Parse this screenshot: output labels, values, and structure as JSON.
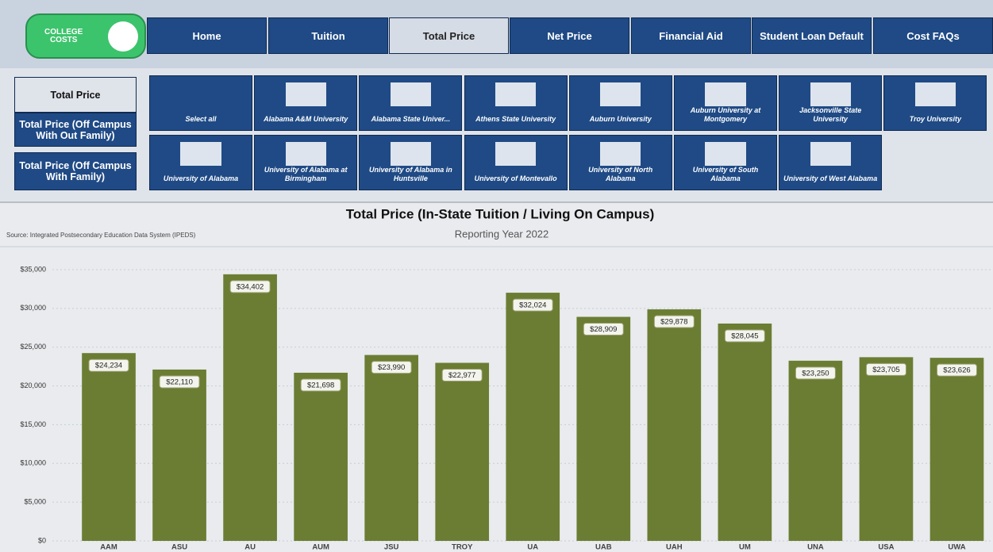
{
  "logo": {
    "line1": "COLLEGE",
    "line2": "COSTS"
  },
  "nav": [
    "Home",
    "Tuition",
    "Total Price",
    "Net Price",
    "Financial Aid",
    "Student Loan Default",
    "Cost FAQs"
  ],
  "nav_selected": "Total Price",
  "side_buttons": [
    "Total Price",
    "Total Price (Off Campus With Out Family)",
    "Total Price (Off Campus With Family)"
  ],
  "side_selected": "Total Price",
  "tiles": [
    [
      "Select all",
      "Alabama A&M University",
      "Alabama State Univer...",
      "Athens State University",
      "Auburn University",
      "Auburn University at Montgomery",
      "Jacksonville State University",
      "Troy University"
    ],
    [
      "University of Alabama",
      "University of Alabama at Birmingham",
      "University of Alabama in Huntsville",
      "University of Montevallo",
      "University of North Alabama",
      "University of South Alabama",
      "University of West Alabama"
    ]
  ],
  "chart_data": {
    "type": "bar",
    "title": "Total Price (In-State Tuition / Living On Campus)",
    "subtitle": "Reporting Year 2022",
    "source": "Source: Integrated Postsecondary Education Data System (IPEDS)",
    "categories": [
      "AAM",
      "ASU",
      "AU",
      "AUM",
      "JSU",
      "TROY",
      "UA",
      "UAB",
      "UAH",
      "UM",
      "UNA",
      "USA",
      "UWA"
    ],
    "values": [
      24234,
      22110,
      34402,
      21698,
      23990,
      22977,
      32024,
      28909,
      29878,
      28045,
      23250,
      23705,
      23626
    ],
    "value_labels": [
      "$24,234",
      "$22,110",
      "$34,402",
      "$21,698",
      "$23,990",
      "$22,977",
      "$32,024",
      "$28,909",
      "$29,878",
      "$28,045",
      "$23,250",
      "$23,705",
      "$23,626"
    ],
    "color": "#6b7d33",
    "ylim": [
      0,
      35000
    ],
    "yticks": [
      {
        "value": 0,
        "label": "$0"
      },
      {
        "value": 5000,
        "label": "$5,000"
      },
      {
        "value": 10000,
        "label": "$10,000"
      },
      {
        "value": 15000,
        "label": "$15,000"
      },
      {
        "value": 20000,
        "label": "$20,000"
      },
      {
        "value": 25000,
        "label": "$25,000"
      },
      {
        "value": 30000,
        "label": "$30,000"
      },
      {
        "value": 35000,
        "label": "$35,000"
      }
    ],
    "grid": true
  }
}
